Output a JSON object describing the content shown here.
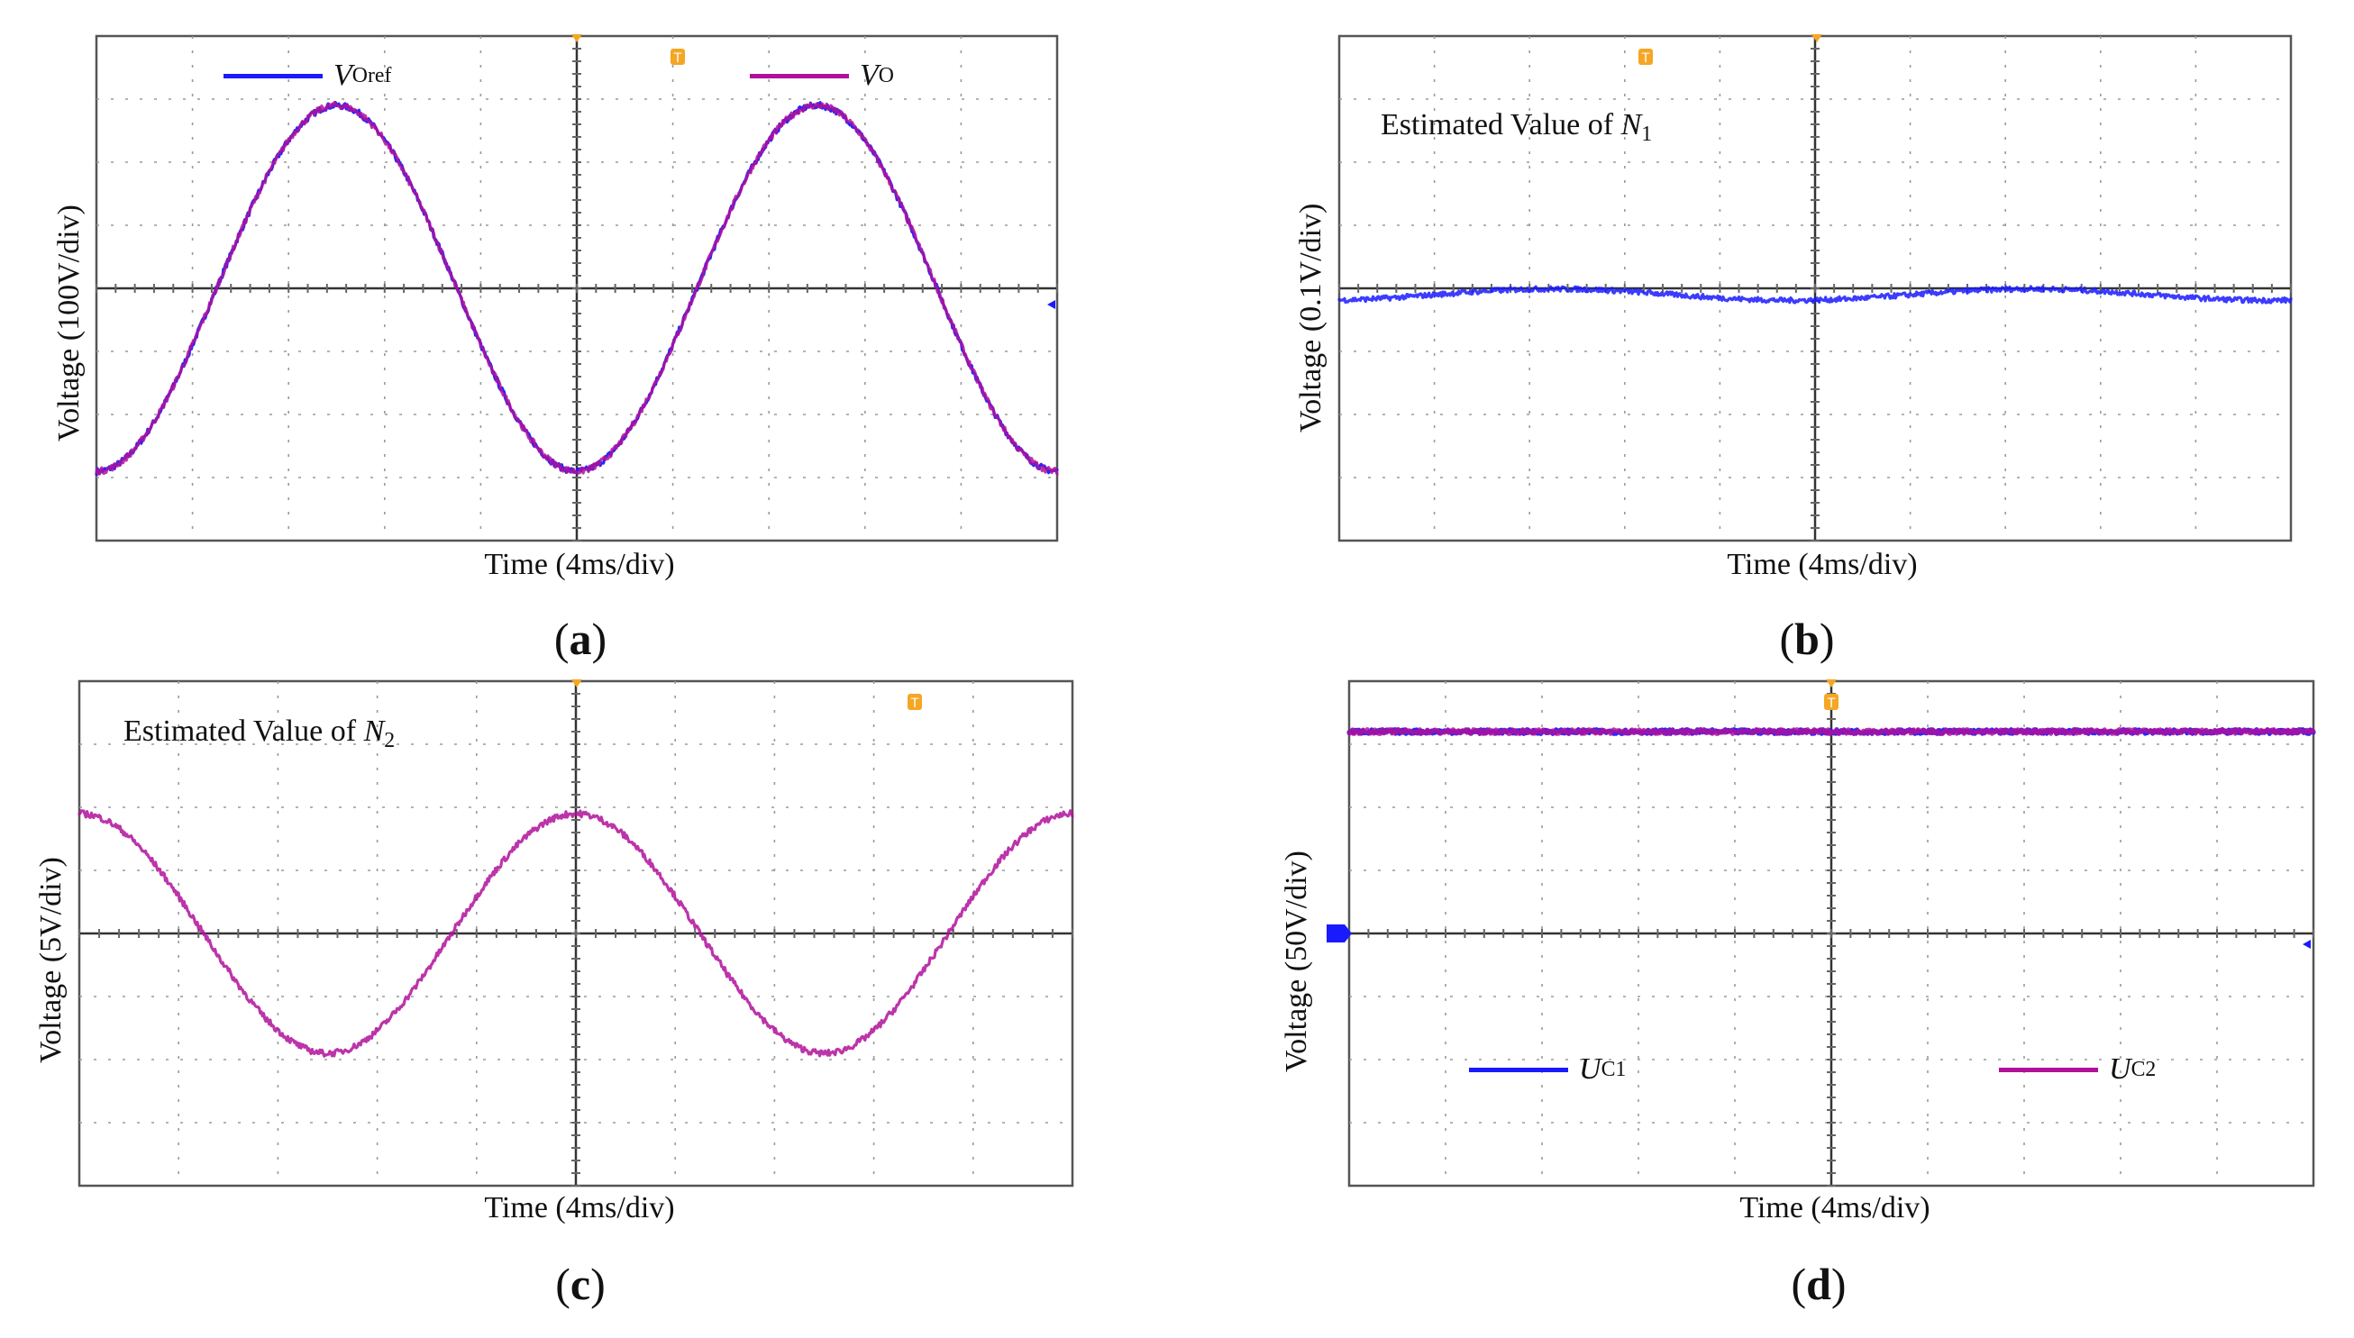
{
  "colors": {
    "blue": "#1a1aff",
    "magenta": "#b0109a",
    "marker": "#f5a623",
    "frame": "#555555"
  },
  "chart_data": [
    {
      "id": "a",
      "type": "line",
      "caption": {
        "open": "(",
        "letter": "a",
        "close": ")"
      },
      "xlabel": "Time (4ms/div)",
      "ylabel": "Voltage (100V/div)",
      "x_divisions": 10,
      "y_divisions": 8,
      "ylim_div": [
        -4,
        4
      ],
      "annotation": null,
      "legend": [
        {
          "symbol": "V",
          "sub": "Oref",
          "color": "#1a1aff"
        },
        {
          "symbol": "V",
          "sub": "O",
          "color": "#b0109a"
        }
      ],
      "series": [
        {
          "name": "VOref",
          "color": "#1a1aff",
          "shape": "sine",
          "amplitude_div": 2.9,
          "period_div": 5,
          "phase_start": "minimum",
          "offset_div": 0
        },
        {
          "name": "VO",
          "color": "#b0109a",
          "shape": "sine",
          "amplitude_div": 2.9,
          "period_div": 5,
          "phase_start": "minimum",
          "offset_div": 0
        }
      ]
    },
    {
      "id": "b",
      "type": "line",
      "caption": {
        "open": "(",
        "letter": "b",
        "close": ")"
      },
      "xlabel": "Time (4ms/div)",
      "ylabel": "Voltage (0.1V/div)",
      "x_divisions": 10,
      "y_divisions": 8,
      "ylim_div": [
        -4,
        4
      ],
      "annotation": {
        "text": "Estimated Value of ",
        "var": "N",
        "sub": "1"
      },
      "legend": [],
      "series": [
        {
          "name": "N1 estimate",
          "color": "#1a1aff",
          "shape": "ripple",
          "amplitude_div": 0.15,
          "period_div": 5,
          "offset_div": -0.1
        }
      ]
    },
    {
      "id": "c",
      "type": "line",
      "caption": {
        "open": "(",
        "letter": "c",
        "close": ")"
      },
      "xlabel": "Time (4ms/div)",
      "ylabel": "Voltage (5V/div)",
      "x_divisions": 10,
      "y_divisions": 8,
      "ylim_div": [
        -4,
        4
      ],
      "annotation": {
        "text": "Estimated Value of ",
        "var": "N",
        "sub": "2"
      },
      "legend": [],
      "series": [
        {
          "name": "N2 estimate",
          "color": "#b0109a",
          "shape": "sine",
          "amplitude_div": 1.9,
          "period_div": 5,
          "phase_start": "maximum",
          "offset_div": 0
        }
      ]
    },
    {
      "id": "d",
      "type": "line",
      "caption": {
        "open": "(",
        "letter": "d",
        "close": ")"
      },
      "xlabel": "Time (4ms/div)",
      "ylabel": "Voltage (50V/div)",
      "x_divisions": 10,
      "y_divisions": 8,
      "ylim_div": [
        -4,
        4
      ],
      "annotation": null,
      "legend": [
        {
          "symbol": "U",
          "sub": "C1",
          "color": "#1a1aff"
        },
        {
          "symbol": "U",
          "sub": "C2",
          "color": "#b0109a"
        }
      ],
      "series": [
        {
          "name": "UC1",
          "color": "#1a1aff",
          "shape": "flat",
          "offset_div": 3.2
        },
        {
          "name": "UC2",
          "color": "#b0109a",
          "shape": "flat",
          "offset_div": 3.2
        }
      ]
    }
  ]
}
